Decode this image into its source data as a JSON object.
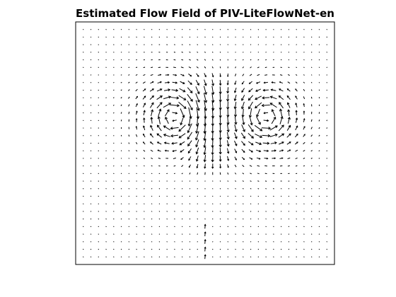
{
  "chart_data": {
    "type": "quiver",
    "title": "Estimated Flow Field of PIV-LiteFlowNet-en",
    "xlabel": "",
    "ylabel": "",
    "grid": false,
    "axis_ticks": false,
    "arrow_color": "#000000",
    "background_color": "#ffffff",
    "grid_cols": 33,
    "grid_rows": 31,
    "max_arrow_length_cells": 1.5,
    "vortices": [
      {
        "name": "left",
        "cx": 12,
        "cy": 11.5,
        "rotation": "clockwise",
        "core_radius": 1.8,
        "strength": 1.0
      },
      {
        "name": "right",
        "cx": 24,
        "cy": 11.5,
        "rotation": "counterclockwise",
        "core_radius": 1.8,
        "strength": 1.0
      }
    ],
    "central_jet": {
      "column_center": 16.5,
      "direction": "downward",
      "row_range": [
        7,
        18
      ],
      "strength": 0.6
    },
    "bottom_jet": {
      "column_center": 16,
      "direction": "upward",
      "row_range": [
        26,
        31
      ],
      "strength": 0.5
    }
  }
}
